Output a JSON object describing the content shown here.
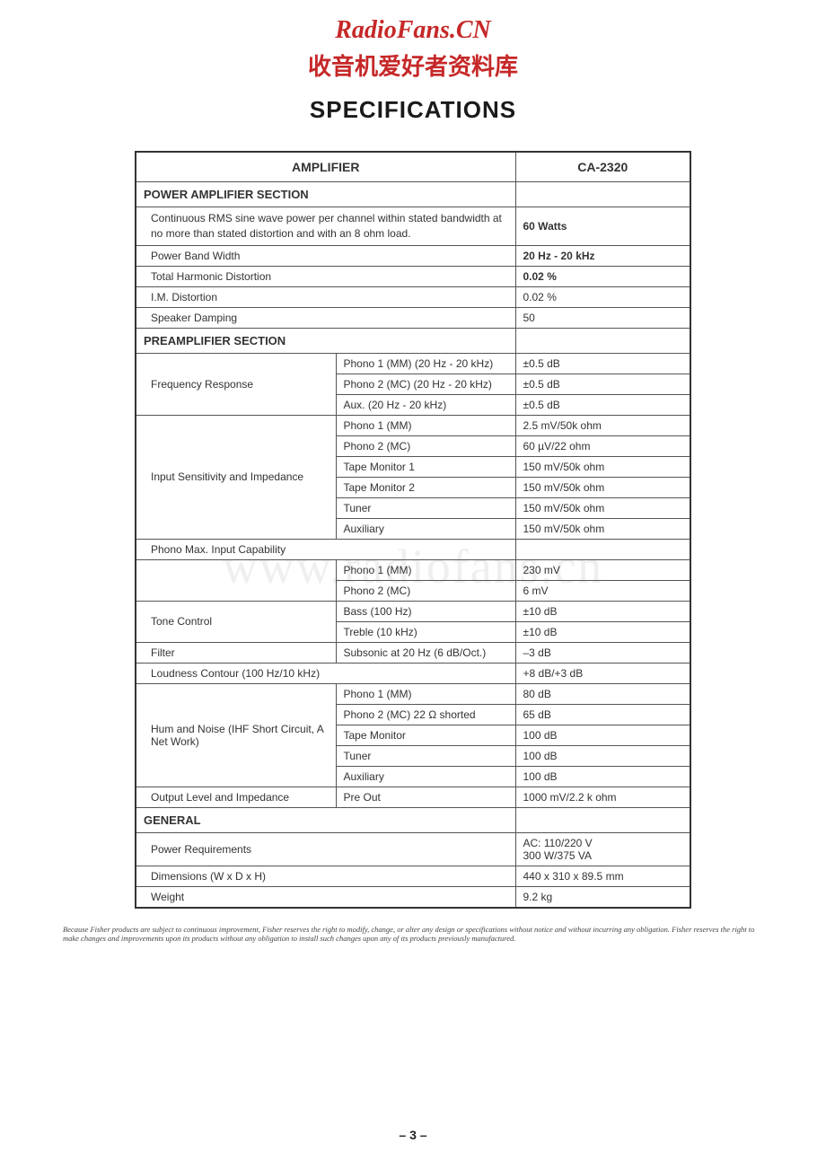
{
  "watermark": {
    "title": "RadioFans.CN",
    "title_color": "#c62828",
    "subtitle": "收音机爱好者资料库",
    "subtitle_color": "#c62828",
    "background_text": "www.radiofans.cn"
  },
  "page": {
    "title": "SPECIFICATIONS",
    "number": "– 3 –"
  },
  "table": {
    "header_left": "AMPLIFIER",
    "header_right": "CA-2320",
    "sections": {
      "power_amp": {
        "title": "POWER AMPLIFIER SECTION",
        "rms_desc": "Continuous RMS sine wave power per channel within stated bandwidth at no more than stated distortion and with an 8 ohm load.",
        "rms_val": "60 Watts",
        "bandwidth_label": "Power Band Width",
        "bandwidth_val": "20 Hz - 20 kHz",
        "thd_label": "Total Harmonic Distortion",
        "thd_val": "0.02 %",
        "im_label": "I.M. Distortion",
        "im_val": "0.02 %",
        "damping_label": "Speaker Damping",
        "damping_val": "50"
      },
      "preamp": {
        "title": "PREAMPLIFIER SECTION",
        "freq_label": "Frequency Response",
        "freq_rows": [
          {
            "param": "Phono 1 (MM) (20 Hz - 20 kHz)",
            "val": "±0.5 dB"
          },
          {
            "param": "Phono 2 (MC) (20 Hz - 20 kHz)",
            "val": "±0.5 dB"
          },
          {
            "param": "Aux. (20 Hz - 20 kHz)",
            "val": "±0.5 dB"
          }
        ],
        "sens_label": "Input Sensitivity and Impedance",
        "sens_rows": [
          {
            "param": "Phono 1 (MM)",
            "val": "2.5 mV/50k ohm"
          },
          {
            "param": "Phono 2 (MC)",
            "val": "60 µV/22 ohm"
          },
          {
            "param": "Tape Monitor 1",
            "val": "150 mV/50k ohm"
          },
          {
            "param": "Tape Monitor 2",
            "val": "150 mV/50k ohm"
          },
          {
            "param": "Tuner",
            "val": "150 mV/50k ohm"
          },
          {
            "param": "Auxiliary",
            "val": "150 mV/50k ohm"
          }
        ],
        "maxinput_label": "Phono Max. Input Capability",
        "maxinput_rows": [
          {
            "param": "Phono 1 (MM)",
            "val": "230 mV"
          },
          {
            "param": "Phono 2 (MC)",
            "val": "6 mV"
          }
        ],
        "tone_label": "Tone Control",
        "tone_rows": [
          {
            "param": "Bass (100 Hz)",
            "val": "±10 dB"
          },
          {
            "param": "Treble (10 kHz)",
            "val": "±10 dB"
          }
        ],
        "filter_label": "Filter",
        "filter_param": "Subsonic at 20 Hz (6 dB/Oct.)",
        "filter_val": "–3 dB",
        "loudness_label": "Loudness Contour (100 Hz/10 kHz)",
        "loudness_val": "+8 dB/+3 dB",
        "hum_label": "Hum and Noise (IHF Short Circuit, A Net Work)",
        "hum_rows": [
          {
            "param": "Phono 1 (MM)",
            "val": "80 dB"
          },
          {
            "param": "Phono 2 (MC) 22 Ω shorted",
            "val": "65 dB"
          },
          {
            "param": "Tape Monitor",
            "val": "100 dB"
          },
          {
            "param": "Tuner",
            "val": "100 dB"
          },
          {
            "param": "Auxiliary",
            "val": "100 dB"
          }
        ],
        "outlevel_label": "Output Level and Impedance",
        "outlevel_param": "Pre Out",
        "outlevel_val": "1000 mV/2.2 k ohm"
      },
      "general": {
        "title": "GENERAL",
        "power_label": "Power Requirements",
        "power_val": "AC: 110/220 V\n300 W/375 VA",
        "dim_label": "Dimensions (W x D x H)",
        "dim_val": "440 x 310 x 89.5 mm",
        "weight_label": "Weight",
        "weight_val": "9.2 kg"
      }
    }
  },
  "disclaimer": "Because Fisher products are subject to continuous improvement, Fisher reserves the right to modify, change, or alter any design or specifications without notice and without incurring any obligation. Fisher reserves the right to make changes and improvements upon its products without any obligation to install such changes upon any of its products previously manufactured."
}
